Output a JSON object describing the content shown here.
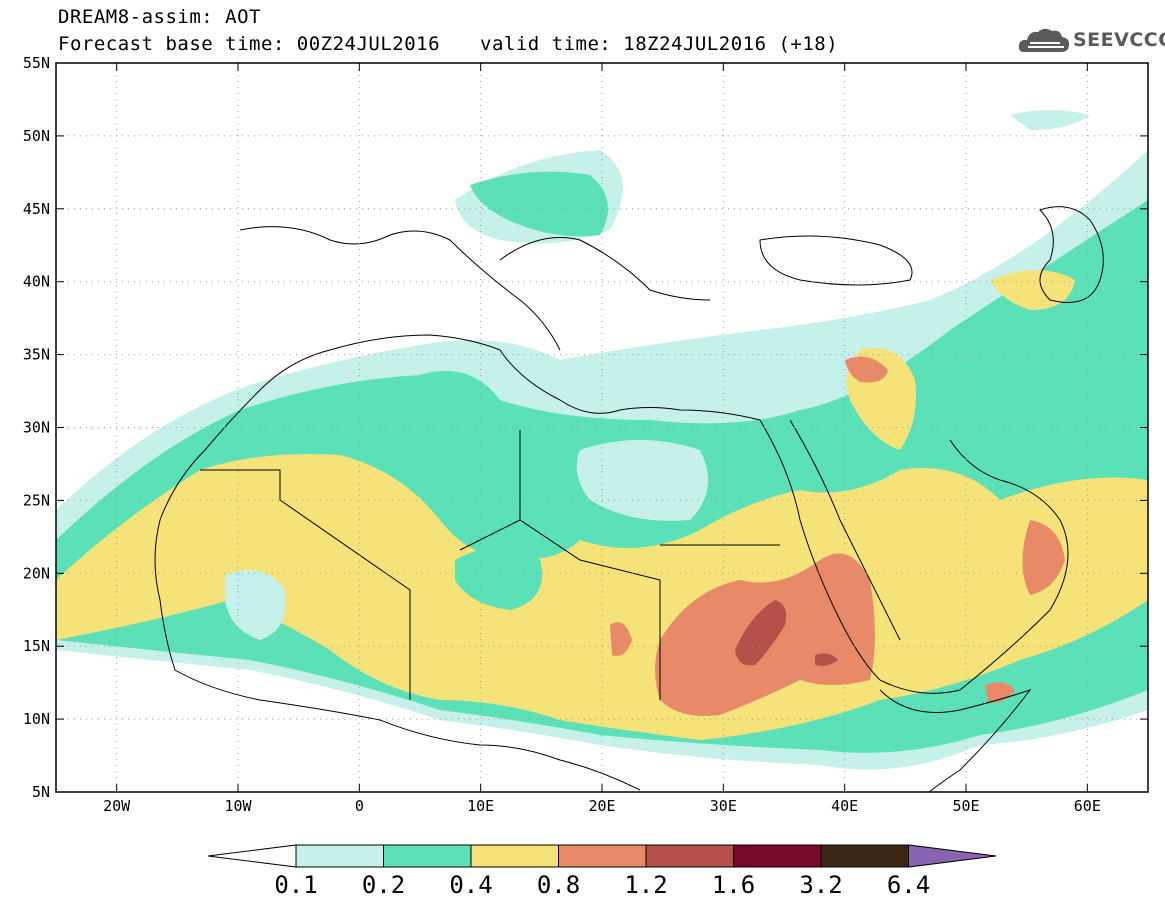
{
  "title": {
    "line1": "DREAM8-assim: AOT",
    "base": "Forecast base time: 00Z24JUL2016",
    "valid": "valid time: 18Z24JUL2016 (+18)"
  },
  "logo": {
    "text": "SEEVCCC",
    "icon": "cloud-logo-icon"
  },
  "map": {
    "lat_labels": [
      "55N",
      "50N",
      "45N",
      "40N",
      "35N",
      "30N",
      "25N",
      "20N",
      "15N",
      "10N",
      "5N"
    ],
    "lat_values": [
      55,
      50,
      45,
      40,
      35,
      30,
      25,
      20,
      15,
      10,
      5
    ],
    "lon_labels": [
      "20W",
      "10W",
      "0",
      "10E",
      "20E",
      "30E",
      "40E",
      "50E",
      "60E"
    ],
    "lon_values": [
      -20,
      -10,
      0,
      10,
      20,
      30,
      40,
      50,
      60
    ],
    "lon_range": [
      -25,
      65
    ],
    "lat_range": [
      5,
      55
    ],
    "grid": "dotted"
  },
  "legend": {
    "levels": [
      "0.1",
      "0.2",
      "0.4",
      "0.8",
      "1.2",
      "1.6",
      "3.2",
      "6.4"
    ],
    "colors": [
      "#ffffff",
      "#c6f0ea",
      "#5ce0b8",
      "#f5e37a",
      "#e88a68",
      "#b5504a",
      "#7a0a2a",
      "#3d2614",
      "#8a64b0"
    ]
  }
}
